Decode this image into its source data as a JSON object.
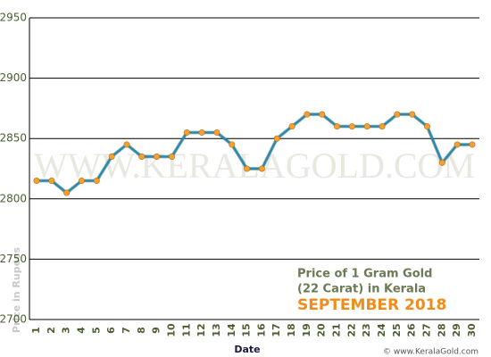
{
  "chart_data": {
    "type": "line",
    "categories": [
      "1",
      "2",
      "3",
      "4",
      "5",
      "6",
      "7",
      "8",
      "9",
      "10",
      "11",
      "12",
      "13",
      "14",
      "15",
      "16",
      "17",
      "18",
      "19",
      "20",
      "21",
      "22",
      "23",
      "24",
      "25",
      "26",
      "27",
      "28",
      "29",
      "30"
    ],
    "series": [
      {
        "name": "Price",
        "color": "#2a8aa8",
        "marker_color": "#f5a030",
        "values": [
          2815,
          2815,
          2805,
          2815,
          2815,
          2835,
          2845,
          2835,
          2835,
          2835,
          2855,
          2855,
          2855,
          2845,
          2825,
          2825,
          2850,
          2860,
          2870,
          2870,
          2860,
          2860,
          2860,
          2860,
          2870,
          2870,
          2860,
          2830,
          2845,
          2845
        ]
      }
    ],
    "ylim": [
      2700,
      2950
    ],
    "yticks": [
      2700,
      2750,
      2800,
      2850,
      2900,
      2950
    ],
    "grid": true,
    "x_label": "Date",
    "y_label": "Price in Rupees",
    "annotation_line1": "Price of 1 Gram Gold",
    "annotation_line2": "(22 Carat) in Kerala",
    "annotation_month": "SEPTEMBER 2018",
    "watermark": "WWW.KERALAGOLD.COM",
    "footer": "© www.KeralaGold.com"
  }
}
